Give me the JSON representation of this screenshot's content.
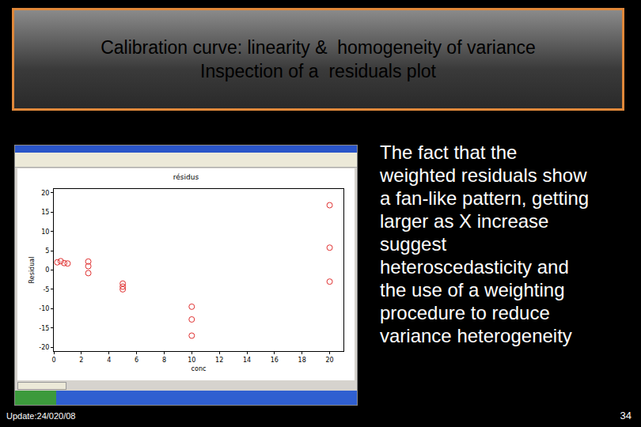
{
  "slide": {
    "title_lines": [
      "Calibration curve: linearity &  homogeneity of variance",
      "Inspection of a  residuals plot"
    ],
    "body_lines": [
      "The fact that the",
      "weighted residuals show",
      "a fan-like pattern, getting",
      "larger as X increase",
      "suggest",
      "heteroscedasticity and",
      "the use of a weighting",
      "procedure to reduce",
      "variance heterogeneity"
    ],
    "footer": "Update:24/020/08",
    "page": "34"
  },
  "chart_data": {
    "type": "scatter",
    "title": "résidus",
    "x_label": "conc",
    "y_label": "Residual",
    "x": [
      0.25,
      0.5,
      0.75,
      1,
      2.5,
      2.5,
      2.5,
      5,
      5,
      5,
      10,
      10,
      10,
      20,
      20,
      20
    ],
    "values": [
      2.0,
      2.3,
      1.8,
      1.7,
      2.2,
      1.0,
      -0.8,
      -3.5,
      -4.3,
      -5.0,
      -9.5,
      -12.8,
      -17.0,
      16.8,
      5.8,
      -3.0
    ],
    "color": "#e03030",
    "marker": "circle-open",
    "xlim": [
      0,
      21
    ],
    "xticks": [
      0,
      2,
      4,
      6,
      8,
      10,
      12,
      14,
      16,
      18,
      20
    ],
    "ylim": [
      -21,
      21
    ],
    "yticks": [
      -20,
      -15,
      -10,
      -5,
      0,
      5,
      10,
      15,
      20
    ],
    "grid": false
  }
}
